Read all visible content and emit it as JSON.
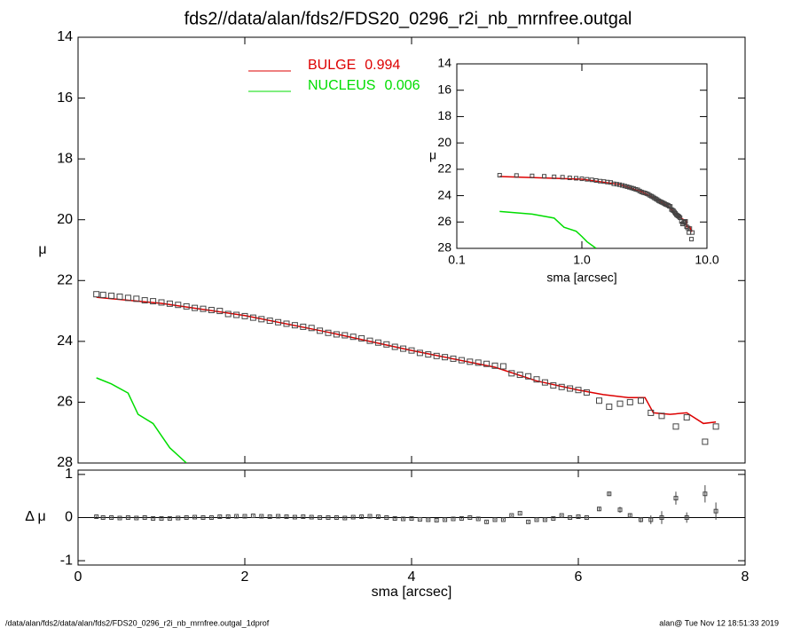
{
  "chart_data": {
    "type": "line",
    "title": "fds2//data/alan/fds2/FDS20_0296_r2i_nb_mrnfree.outgal",
    "xlabel": "sma [arcsec]",
    "ylabel": "μ",
    "xlim": [
      0,
      8
    ],
    "xticks": [
      0,
      2,
      4,
      6,
      8
    ],
    "ylim": [
      28,
      14
    ],
    "yticks": [
      14,
      16,
      18,
      20,
      22,
      24,
      26,
      28
    ],
    "points": {
      "color": "#444444",
      "x": [
        0.22,
        0.3,
        0.4,
        0.5,
        0.6,
        0.7,
        0.8,
        0.9,
        1.0,
        1.1,
        1.2,
        1.3,
        1.4,
        1.5,
        1.6,
        1.7,
        1.8,
        1.9,
        2.0,
        2.1,
        2.2,
        2.3,
        2.4,
        2.5,
        2.6,
        2.7,
        2.8,
        2.9,
        3.0,
        3.1,
        3.2,
        3.3,
        3.4,
        3.5,
        3.6,
        3.7,
        3.8,
        3.9,
        4.0,
        4.1,
        4.2,
        4.3,
        4.4,
        4.5,
        4.6,
        4.7,
        4.8,
        4.9,
        5.0,
        5.1,
        5.2,
        5.3,
        5.4,
        5.5,
        5.6,
        5.7,
        5.8,
        5.9,
        6.0,
        6.1,
        6.25,
        6.37,
        6.5,
        6.62,
        6.75,
        6.87,
        7.0,
        7.17,
        7.3,
        7.52,
        7.65
      ],
      "values": [
        22.45,
        22.47,
        22.5,
        22.53,
        22.57,
        22.6,
        22.65,
        22.68,
        22.72,
        22.76,
        22.8,
        22.85,
        22.9,
        22.93,
        22.97,
        23.0,
        23.1,
        23.13,
        23.17,
        23.22,
        23.27,
        23.32,
        23.37,
        23.42,
        23.47,
        23.52,
        23.56,
        23.65,
        23.72,
        23.77,
        23.8,
        23.85,
        23.9,
        23.98,
        24.04,
        24.1,
        24.18,
        24.24,
        24.3,
        24.38,
        24.43,
        24.48,
        24.52,
        24.57,
        24.62,
        24.67,
        24.7,
        24.74,
        24.8,
        24.82,
        25.05,
        25.1,
        25.15,
        25.25,
        25.35,
        25.45,
        25.5,
        25.55,
        25.6,
        25.68,
        25.95,
        26.15,
        26.05,
        26.0,
        25.95,
        26.35,
        26.45,
        26.8,
        26.5,
        27.3,
        26.8
      ]
    },
    "series": [
      {
        "name": "BULGE",
        "fraction": 0.994,
        "color": "#dd0000",
        "x": [
          0.22,
          1.0,
          2.0,
          3.0,
          4.0,
          5.0,
          5.5,
          6.0,
          6.3,
          6.6,
          6.8,
          6.9,
          7.1,
          7.3,
          7.5,
          7.65
        ],
        "values": [
          22.55,
          22.75,
          23.15,
          23.7,
          24.3,
          24.85,
          25.3,
          25.6,
          25.75,
          25.85,
          25.85,
          26.35,
          26.4,
          26.35,
          26.7,
          26.65
        ]
      },
      {
        "name": "NUCLEUS",
        "fraction": 0.006,
        "color": "#00dd00",
        "x": [
          0.22,
          0.4,
          0.6,
          0.72,
          0.9,
          1.0,
          1.1,
          1.3
        ],
        "values": [
          25.2,
          25.4,
          25.7,
          26.4,
          26.7,
          27.1,
          27.5,
          28.0
        ]
      }
    ],
    "residual": {
      "ylabel": "Δ μ",
      "ylim": [
        -1.1,
        1.1
      ],
      "yticks": [
        -1,
        0,
        1
      ],
      "values": [
        0.02,
        0.0,
        0.0,
        -0.01,
        0.0,
        -0.01,
        0.0,
        -0.02,
        -0.02,
        -0.02,
        -0.01,
        0,
        0.01,
        0,
        0,
        0.02,
        0.02,
        0.03,
        0.03,
        0.04,
        0.03,
        0.02,
        0.03,
        0.02,
        0.01,
        0.02,
        0.01,
        0.0,
        0.0,
        0.0,
        -0.01,
        0.01,
        0.02,
        0.03,
        0.02,
        0.0,
        -0.02,
        -0.03,
        -0.02,
        -0.04,
        -0.05,
        -0.06,
        -0.05,
        -0.03,
        -0.02,
        0.0,
        -0.03,
        -0.1,
        -0.05,
        -0.05,
        0.05,
        0.1,
        -0.1,
        -0.05,
        -0.05,
        -0.02,
        0.05,
        0.0,
        0.02,
        0.0,
        0.2,
        0.55,
        0.18,
        0.05,
        -0.05,
        -0.05,
        0.0,
        0.45,
        0.0,
        0.55,
        0.15
      ],
      "errors": [
        0.02,
        0.02,
        0.02,
        0.02,
        0.02,
        0.02,
        0.02,
        0.02,
        0.02,
        0.02,
        0.02,
        0.02,
        0.02,
        0.02,
        0.02,
        0.02,
        0.02,
        0.02,
        0.02,
        0.02,
        0.02,
        0.02,
        0.02,
        0.02,
        0.02,
        0.02,
        0.02,
        0.02,
        0.02,
        0.02,
        0.02,
        0.02,
        0.02,
        0.02,
        0.02,
        0.02,
        0.02,
        0.02,
        0.02,
        0.02,
        0.02,
        0.02,
        0.02,
        0.02,
        0.02,
        0.02,
        0.02,
        0.02,
        0.02,
        0.02,
        0.02,
        0.02,
        0.02,
        0.02,
        0.02,
        0.02,
        0.02,
        0.02,
        0.02,
        0.02,
        0.05,
        0.05,
        0.07,
        0.05,
        0.06,
        0.1,
        0.15,
        0.15,
        0.12,
        0.2,
        0.2
      ]
    },
    "inset": {
      "xlabel": "sma [arcsec]",
      "ylabel": "μ",
      "log_x": true,
      "xlim": [
        0.1,
        10
      ],
      "xticks": [
        0.1,
        {
          "value": 1,
          "label": "1.0"
        },
        {
          "value": 10,
          "label": "10.0"
        }
      ],
      "ylim": [
        28,
        14
      ],
      "yticks": [
        14,
        16,
        18,
        20,
        22,
        24,
        26,
        28
      ]
    },
    "footer_left": "/data/alan/fds2/data/alan/fds2/FDS20_0296_r2i_nb_mrnfree.outgal_1dprof",
    "footer_right": "alan@  Tue Nov 12 18:51:33 2019"
  }
}
